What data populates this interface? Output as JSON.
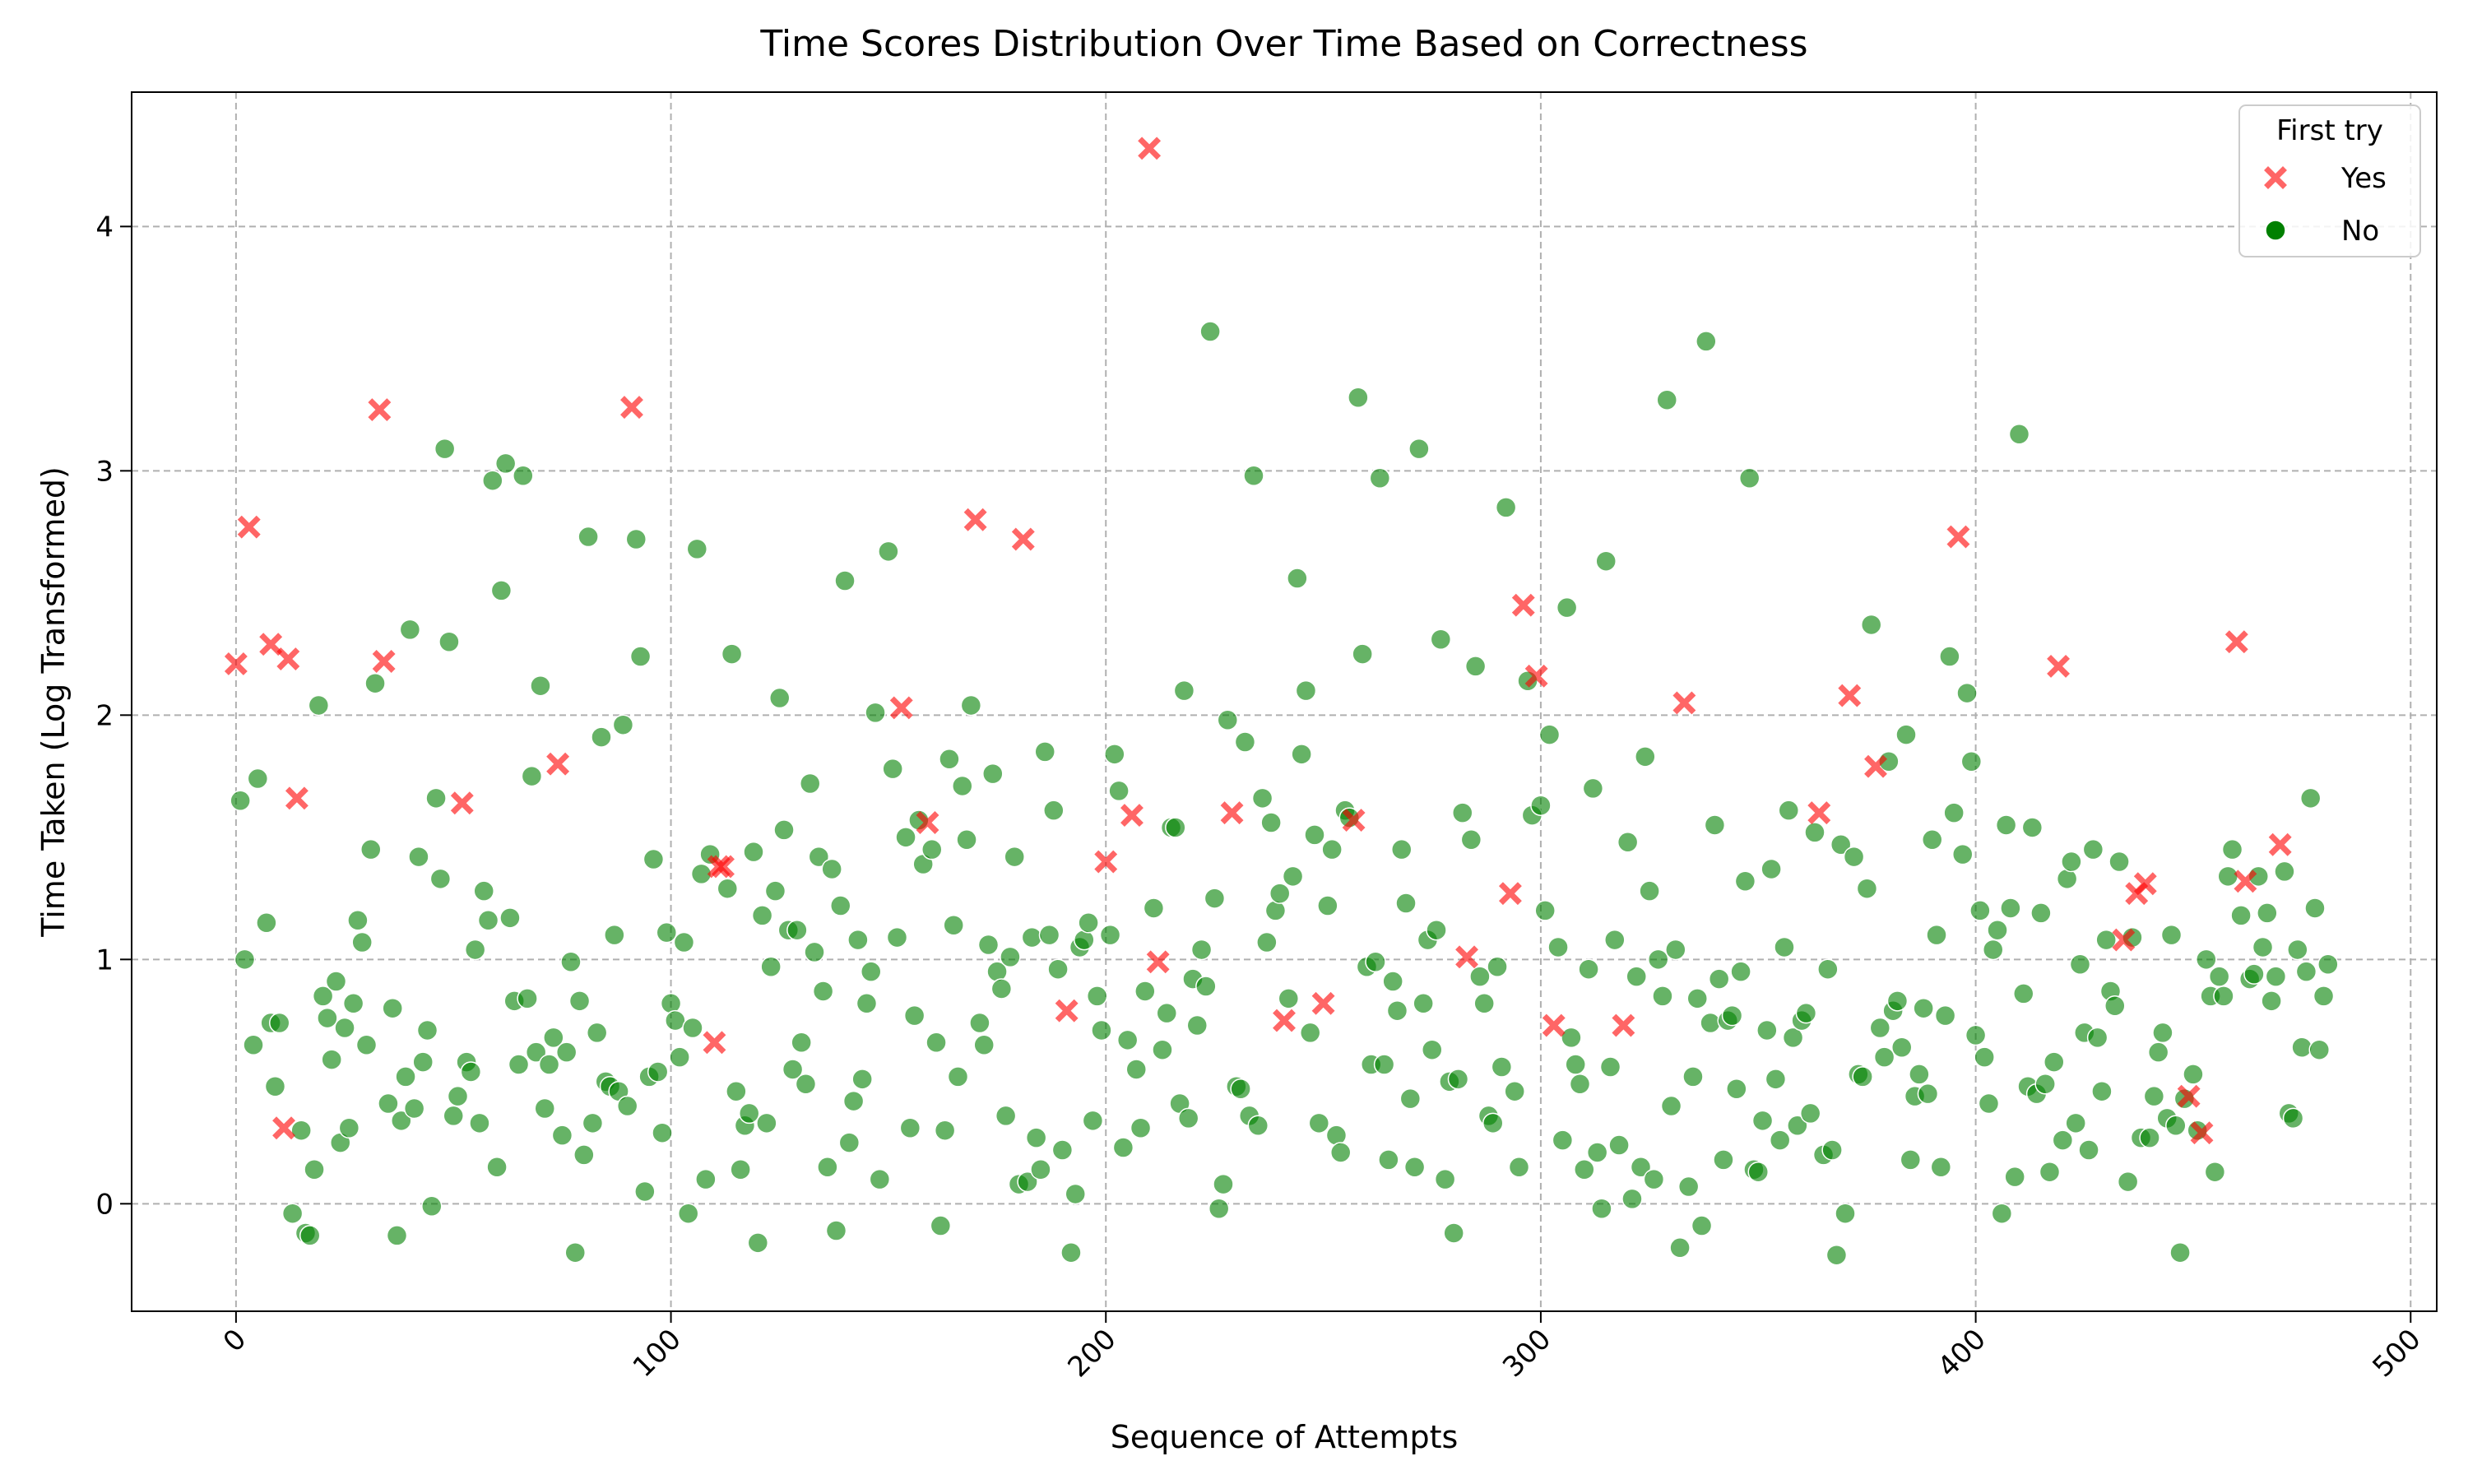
{
  "chart_data": {
    "type": "scatter",
    "title": "Time Scores Distribution Over Time Based on Correctness",
    "x_label": "Sequence of Attempts",
    "y_label": "Time Taken (Log Transformed)",
    "xlim": [
      -24,
      506
    ],
    "ylim": [
      -0.44,
      4.55
    ],
    "xticks": [
      0,
      100,
      200,
      300,
      400,
      500
    ],
    "yticks": [
      0,
      1,
      2,
      3,
      4
    ],
    "grid": true,
    "legend_title": "First try",
    "legend_position": "upper right",
    "series": [
      {
        "name": "Yes",
        "color": "#ff0000",
        "marker": "x",
        "x": [
          0,
          3,
          8,
          11,
          12,
          14,
          33,
          34,
          52,
          74,
          91,
          110,
          111,
          112,
          153,
          159,
          170,
          181,
          191,
          200,
          206,
          210,
          212,
          229,
          241,
          250,
          257,
          283,
          293,
          296,
          299,
          303,
          319,
          333,
          364,
          371,
          377,
          396,
          419,
          434,
          437,
          439,
          449,
          452,
          460,
          462,
          470
        ],
        "values": [
          2.21,
          2.77,
          2.29,
          0.31,
          2.23,
          1.66,
          3.25,
          2.22,
          1.64,
          1.8,
          3.26,
          0.66,
          1.38,
          1.38,
          2.03,
          1.56,
          2.8,
          2.72,
          0.79,
          1.4,
          1.59,
          4.32,
          0.99,
          1.6,
          0.75,
          0.82,
          1.57,
          1.01,
          1.27,
          2.45,
          2.16,
          0.73,
          0.73,
          2.05,
          1.6,
          2.08,
          1.79,
          2.73,
          2.2,
          1.08,
          1.27,
          1.31,
          0.44,
          0.29,
          2.3,
          1.32,
          1.47
        ]
      },
      {
        "name": "No",
        "color": "#008000",
        "marker": "o",
        "x": [
          1,
          2,
          4,
          5,
          7,
          8,
          9,
          10,
          13,
          15,
          16,
          17,
          18,
          19,
          20,
          21,
          22,
          23,
          24,
          25,
          26,
          27,
          28,
          29,
          30,
          31,
          32,
          35,
          36,
          37,
          38,
          39,
          40,
          41,
          42,
          43,
          44,
          45,
          46,
          47,
          48,
          49,
          50,
          51,
          53,
          54,
          55,
          56,
          57,
          58,
          59,
          60,
          61,
          62,
          63,
          64,
          65,
          66,
          67,
          68,
          69,
          70,
          71,
          72,
          73,
          75,
          76,
          77,
          78,
          79,
          80,
          81,
          82,
          83,
          84,
          85,
          86,
          87,
          88,
          89,
          90,
          92,
          93,
          94,
          95,
          96,
          97,
          98,
          99,
          100,
          101,
          102,
          103,
          104,
          105,
          106,
          107,
          108,
          109,
          113,
          114,
          115,
          116,
          117,
          118,
          119,
          120,
          121,
          122,
          123,
          124,
          125,
          126,
          127,
          128,
          129,
          130,
          131,
          132,
          133,
          134,
          135,
          136,
          137,
          138,
          139,
          140,
          141,
          142,
          143,
          144,
          145,
          146,
          147,
          148,
          150,
          151,
          152,
          154,
          155,
          156,
          157,
          158,
          160,
          161,
          162,
          163,
          164,
          165,
          166,
          167,
          168,
          169,
          171,
          172,
          173,
          174,
          175,
          176,
          177,
          178,
          179,
          180,
          182,
          183,
          184,
          185,
          186,
          187,
          188,
          189,
          190,
          192,
          193,
          194,
          195,
          196,
          197,
          198,
          199,
          201,
          202,
          203,
          204,
          205,
          207,
          208,
          209,
          211,
          213,
          214,
          215,
          216,
          217,
          218,
          219,
          220,
          221,
          222,
          223,
          224,
          225,
          226,
          227,
          228,
          230,
          231,
          232,
          233,
          234,
          235,
          236,
          237,
          238,
          239,
          240,
          242,
          243,
          244,
          245,
          246,
          247,
          248,
          249,
          251,
          252,
          253,
          254,
          255,
          256,
          258,
          259,
          260,
          261,
          262,
          263,
          264,
          265,
          266,
          267,
          268,
          269,
          270,
          271,
          272,
          273,
          274,
          275,
          276,
          277,
          278,
          279,
          280,
          281,
          282,
          284,
          285,
          286,
          287,
          288,
          289,
          290,
          291,
          292,
          294,
          295,
          297,
          298,
          300,
          301,
          302,
          304,
          305,
          306,
          307,
          308,
          309,
          310,
          311,
          312,
          313,
          314,
          315,
          316,
          317,
          318,
          320,
          321,
          322,
          323,
          324,
          325,
          326,
          327,
          328,
          329,
          330,
          331,
          332,
          334,
          335,
          336,
          337,
          338,
          339,
          340,
          341,
          342,
          343,
          344,
          345,
          346,
          347,
          348,
          349,
          350,
          351,
          352,
          353,
          354,
          355,
          356,
          357,
          358,
          359,
          360,
          361,
          362,
          363,
          365,
          366,
          367,
          368,
          369,
          370,
          372,
          373,
          374,
          375,
          376,
          378,
          379,
          380,
          381,
          382,
          383,
          384,
          385,
          386,
          387,
          388,
          389,
          390,
          391,
          392,
          393,
          394,
          395,
          397,
          398,
          399,
          400,
          401,
          402,
          403,
          404,
          405,
          406,
          407,
          408,
          409,
          410,
          411,
          412,
          413,
          414,
          415,
          416,
          417,
          418,
          420,
          421,
          422,
          423,
          424,
          425,
          426,
          427,
          428,
          429,
          430,
          431,
          432,
          433,
          435,
          436,
          438,
          440,
          441,
          442,
          443,
          444,
          445,
          446,
          447,
          448,
          450,
          451,
          453,
          454,
          455,
          456,
          457,
          458,
          459,
          461,
          463,
          464,
          465,
          466,
          467,
          468,
          469,
          471,
          472,
          473,
          474,
          475,
          476,
          477,
          478,
          479,
          480,
          481
        ],
        "values": [
          1.65,
          1.0,
          0.65,
          1.74,
          1.15,
          0.74,
          0.48,
          0.74,
          -0.04,
          0.3,
          -0.12,
          -0.13,
          0.14,
          2.04,
          0.85,
          0.76,
          0.59,
          0.91,
          0.25,
          0.72,
          0.31,
          0.82,
          1.16,
          1.07,
          0.65,
          1.45,
          2.13,
          0.41,
          0.8,
          -0.13,
          0.34,
          0.52,
          2.35,
          0.39,
          1.42,
          0.58,
          0.71,
          -0.01,
          1.66,
          1.33,
          3.09,
          2.3,
          0.36,
          0.44,
          0.58,
          0.54,
          1.04,
          0.33,
          1.28,
          1.16,
          2.96,
          0.15,
          2.51,
          3.03,
          1.17,
          0.83,
          0.57,
          2.98,
          0.84,
          1.75,
          0.62,
          2.12,
          0.39,
          0.57,
          0.68,
          0.28,
          0.62,
          0.99,
          -0.2,
          0.83,
          0.2,
          2.73,
          0.33,
          0.7,
          1.91,
          0.5,
          0.48,
          1.1,
          0.46,
          1.96,
          0.4,
          2.72,
          2.24,
          0.05,
          0.52,
          1.41,
          0.54,
          0.29,
          1.11,
          0.82,
          0.75,
          0.6,
          1.07,
          -0.04,
          0.72,
          2.68,
          1.35,
          0.1,
          1.43,
          1.29,
          2.25,
          0.46,
          0.14,
          0.32,
          0.37,
          1.44,
          -0.16,
          1.18,
          0.33,
          0.97,
          1.28,
          2.07,
          1.53,
          1.12,
          0.55,
          1.12,
          0.66,
          0.49,
          1.72,
          1.03,
          1.42,
          0.87,
          0.15,
          1.37,
          -0.11,
          1.22,
          2.55,
          0.25,
          0.42,
          1.08,
          0.51,
          0.82,
          0.95,
          2.01,
          0.1,
          2.67,
          1.78,
          1.09,
          1.5,
          0.31,
          0.77,
          1.57,
          1.39,
          1.45,
          0.66,
          -0.09,
          0.3,
          1.82,
          1.14,
          0.52,
          1.71,
          1.49,
          2.04,
          0.74,
          0.65,
          1.06,
          1.76,
          0.95,
          0.88,
          0.36,
          1.01,
          1.42,
          0.08,
          0.09,
          1.09,
          0.27,
          0.14,
          1.85,
          1.1,
          1.61,
          0.96,
          0.22,
          -0.2,
          0.04,
          1.05,
          1.08,
          1.15,
          0.34,
          0.85,
          0.71,
          1.1,
          1.84,
          1.69,
          0.23,
          0.67,
          0.55,
          0.31,
          0.87,
          1.21,
          0.63,
          0.78,
          1.54,
          1.54,
          0.41,
          2.1,
          0.35,
          0.92,
          0.73,
          1.04,
          0.89,
          3.57,
          1.25,
          -0.02,
          0.08,
          1.98,
          0.48,
          0.47,
          1.89,
          0.36,
          2.98,
          0.32,
          1.66,
          1.07,
          1.56,
          1.2,
          1.27,
          0.84,
          1.34,
          2.56,
          1.84,
          2.1,
          0.7,
          1.51,
          0.33,
          1.22,
          1.45,
          0.28,
          0.21,
          1.61,
          1.58,
          3.3,
          2.25,
          0.97,
          0.57,
          0.99,
          2.97,
          0.57,
          0.18,
          0.91,
          0.79,
          1.45,
          1.23,
          0.43,
          0.15,
          3.09,
          0.82,
          1.08,
          0.63,
          1.12,
          2.31,
          0.1,
          0.5,
          -0.12,
          0.51,
          1.6,
          1.49,
          2.2,
          0.93,
          0.82,
          0.36,
          0.33,
          0.97,
          0.56,
          2.85,
          0.46,
          0.15,
          2.14,
          1.59,
          1.63,
          1.2,
          1.92,
          1.05,
          0.26,
          2.44,
          0.68,
          0.57,
          0.49,
          0.14,
          0.96,
          1.7,
          0.21,
          -0.02,
          2.63,
          0.56,
          1.08,
          0.24,
          1.48,
          0.02,
          0.93,
          0.15,
          1.83,
          1.28,
          0.1,
          1.0,
          0.85,
          3.29,
          0.4,
          1.04,
          -0.18,
          0.07,
          0.52,
          0.84,
          -0.09,
          3.53,
          0.74,
          1.55,
          0.92,
          0.18,
          0.75,
          0.77,
          0.47,
          0.95,
          1.32,
          2.97,
          0.14,
          0.13,
          0.34,
          0.71,
          1.37,
          0.51,
          0.26,
          1.05,
          1.61,
          0.68,
          0.32,
          0.75,
          0.78,
          0.37,
          1.52,
          0.2,
          0.96,
          0.22,
          -0.21,
          1.47,
          -0.04,
          1.42,
          0.53,
          0.52,
          1.29,
          2.37,
          0.72,
          0.6,
          1.81,
          0.79,
          0.83,
          0.64,
          1.92,
          0.18,
          0.44,
          0.53,
          0.8,
          0.45,
          1.49,
          1.1,
          0.15,
          0.77,
          2.24,
          1.6,
          1.43,
          2.09,
          1.81,
          0.69,
          1.2,
          0.6,
          0.41,
          1.04,
          1.12,
          -0.04,
          1.55,
          1.21,
          0.11,
          3.15,
          0.86,
          0.48,
          1.54,
          0.45,
          1.19,
          0.49,
          0.13,
          0.58,
          0.26,
          1.33,
          1.4,
          0.33,
          0.98,
          0.7,
          0.22,
          1.45,
          0.68,
          0.46,
          1.08,
          0.87,
          0.81,
          1.4,
          0.09,
          1.09,
          0.27,
          0.27,
          0.44,
          0.62,
          0.7,
          0.35,
          1.1,
          0.32,
          -0.2,
          0.43,
          0.53,
          0.3,
          1.0,
          0.85,
          0.13,
          0.93,
          0.85,
          1.34,
          1.45,
          1.18,
          0.92,
          0.94,
          1.34,
          1.05,
          1.19,
          0.83,
          0.93,
          1.36,
          0.37,
          0.35,
          1.04,
          0.64,
          0.95,
          1.66,
          1.21,
          0.63,
          0.85,
          0.98
        ]
      }
    ]
  }
}
